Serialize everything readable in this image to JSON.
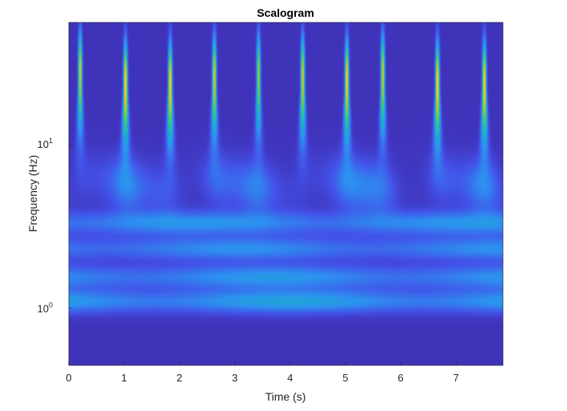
{
  "chart_data": {
    "type": "heatmap",
    "title": "Scalogram",
    "xlabel": "Time (s)",
    "ylabel": "Frequency (Hz)",
    "xlim": [
      0,
      7.85
    ],
    "ylim": [
      0.45,
      55
    ],
    "yscale": "log",
    "xticks": [
      0,
      1,
      2,
      3,
      4,
      5,
      6,
      7
    ],
    "yticks": [
      {
        "value": 1,
        "base": "10",
        "exp": "0"
      },
      {
        "value": 10,
        "base": "10",
        "exp": "1"
      }
    ],
    "grid": false,
    "colormap": [
      "#3e26a8",
      "#4353e9",
      "#2d90f0",
      "#19b3c6",
      "#3bc487",
      "#9dc93b",
      "#f4c31f",
      "#f9e827"
    ],
    "bursts": [
      {
        "t": 0.2,
        "peak_freq": 28,
        "magnitude": 0.78
      },
      {
        "t": 1.02,
        "peak_freq": 24,
        "magnitude": 0.92
      },
      {
        "t": 1.83,
        "peak_freq": 24,
        "magnitude": 0.9
      },
      {
        "t": 2.63,
        "peak_freq": 26,
        "magnitude": 0.82
      },
      {
        "t": 3.43,
        "peak_freq": 27,
        "magnitude": 0.7
      },
      {
        "t": 4.23,
        "peak_freq": 26,
        "magnitude": 0.8
      },
      {
        "t": 5.03,
        "peak_freq": 25,
        "magnitude": 0.88
      },
      {
        "t": 5.68,
        "peak_freq": 27,
        "magnitude": 0.78
      },
      {
        "t": 6.67,
        "peak_freq": 24,
        "magnitude": 0.92
      },
      {
        "t": 7.52,
        "peak_freq": 24,
        "magnitude": 0.9
      }
    ],
    "bands": [
      {
        "freq": 1.1,
        "magnitude": 0.32
      },
      {
        "freq": 1.55,
        "magnitude": 0.28
      },
      {
        "freq": 2.3,
        "magnitude": 0.25
      },
      {
        "freq": 3.3,
        "magnitude": 0.26
      }
    ]
  }
}
